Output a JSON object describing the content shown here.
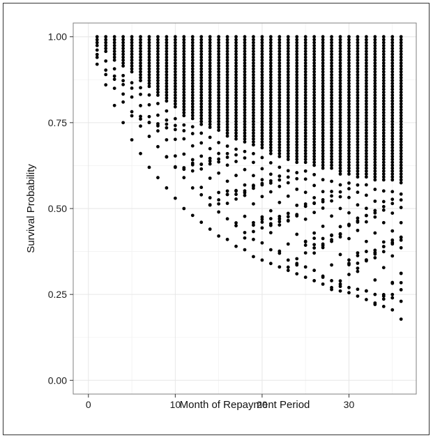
{
  "chart_data": {
    "type": "scatter",
    "title": "",
    "xlabel": "Month of Repayment Period",
    "ylabel": "Survival Probability",
    "xlim": [
      -1.75,
      37.75
    ],
    "ylim": [
      -0.04,
      1.04
    ],
    "x_ticks": [
      0,
      10,
      20,
      30
    ],
    "y_ticks": [
      0.0,
      0.25,
      0.5,
      0.75,
      1.0
    ],
    "x_tick_labels": [
      "0",
      "10",
      "20",
      "30"
    ],
    "y_tick_labels": [
      "0.00",
      "0.25",
      "0.50",
      "0.75",
      "1.00"
    ],
    "grid": true,
    "legend": "none",
    "point_color": "#000000",
    "months": [
      1,
      36
    ],
    "lower_bounds_by_month": [
      0.92,
      0.86,
      0.8,
      0.75,
      0.7,
      0.66,
      0.62,
      0.59,
      0.56,
      0.53,
      0.5,
      0.48,
      0.46,
      0.44,
      0.42,
      0.41,
      0.39,
      0.38,
      0.36,
      0.35,
      0.34,
      0.33,
      0.32,
      0.31,
      0.3,
      0.29,
      0.28,
      0.27,
      0.26,
      0.255,
      0.245,
      0.235,
      0.225,
      0.215,
      0.205,
      0.178
    ],
    "secondary_curve_by_month": [
      0.94,
      0.89,
      0.85,
      0.81,
      0.77,
      0.74,
      0.71,
      0.68,
      0.65,
      0.62,
      0.59,
      0.56,
      0.54,
      0.51,
      0.49,
      0.47,
      0.45,
      0.43,
      0.41,
      0.4,
      0.38,
      0.37,
      0.35,
      0.34,
      0.33,
      0.32,
      0.3,
      0.29,
      0.28,
      0.27,
      0.265,
      0.26,
      0.25,
      0.245,
      0.24,
      0.23
    ],
    "dense_band_floor_by_month": [
      0.97,
      0.95,
      0.93,
      0.91,
      0.89,
      0.87,
      0.85,
      0.83,
      0.81,
      0.79,
      0.77,
      0.76,
      0.74,
      0.73,
      0.72,
      0.71,
      0.7,
      0.69,
      0.68,
      0.67,
      0.66,
      0.65,
      0.64,
      0.63,
      0.63,
      0.62,
      0.61,
      0.61,
      0.6,
      0.6,
      0.59,
      0.59,
      0.58,
      0.58,
      0.58,
      0.57
    ],
    "max_value": 1.0
  }
}
